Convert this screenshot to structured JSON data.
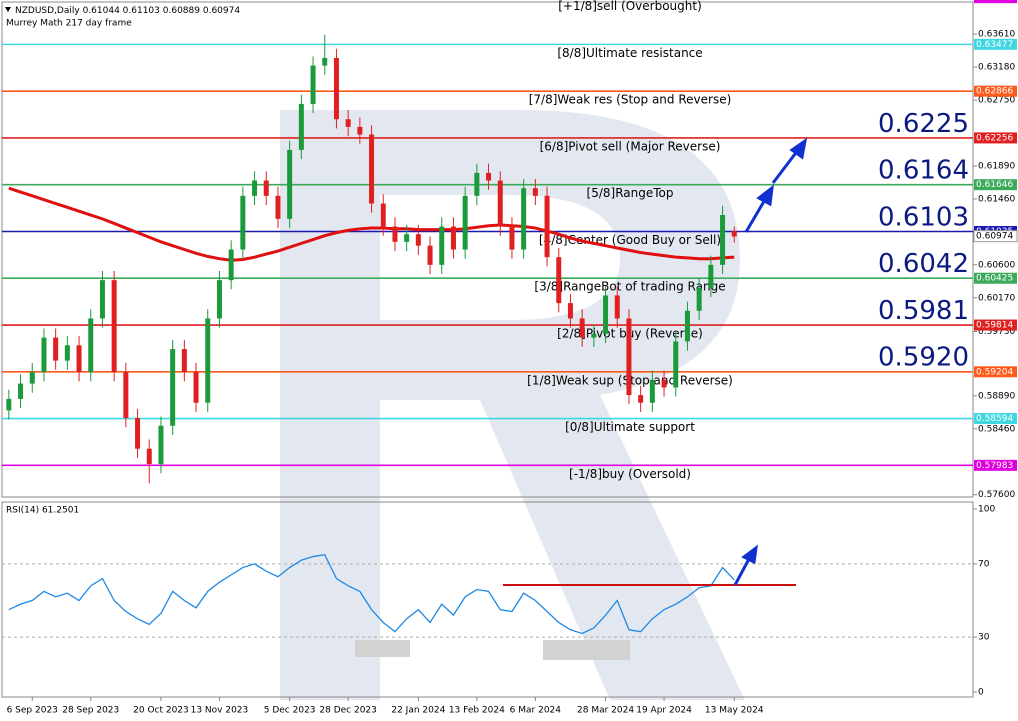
{
  "chart_data": [
    {
      "type": "candlestick",
      "title": "NZDUSD,Daily",
      "subtitle": "Murrey Math 217 day frame",
      "last_bar": [
        0.61044,
        0.61103,
        0.60889,
        0.60974
      ],
      "categories": [
        null,
        null,
        "6 Sep 2023",
        null,
        null,
        null,
        null,
        "28 Sep 2023",
        null,
        null,
        null,
        null,
        null,
        "20 Oct 2023",
        null,
        null,
        null,
        null,
        "13 Nov 2023",
        null,
        null,
        null,
        null,
        null,
        "5 Dec 2023",
        null,
        null,
        null,
        null,
        "28 Dec 2023",
        null,
        null,
        null,
        null,
        null,
        "22 Jan 2024",
        null,
        null,
        null,
        null,
        "13 Feb 2024",
        null,
        null,
        null,
        null,
        "6 Mar 2024",
        null,
        null,
        null,
        null,
        null,
        "28 Mar 2024",
        null,
        null,
        null,
        null,
        "19 Apr 2024",
        null,
        null,
        null,
        null,
        null,
        "13 May 2024"
      ],
      "open": [
        0.587,
        0.5885,
        0.5905,
        0.592,
        0.5965,
        0.5935,
        0.5955,
        0.592,
        0.599,
        0.604,
        0.592,
        0.586,
        0.582,
        0.58,
        0.585,
        0.595,
        0.592,
        0.588,
        0.599,
        0.604,
        0.608,
        0.615,
        0.617,
        0.615,
        0.612,
        0.621,
        0.627,
        0.632,
        0.633,
        0.625,
        0.624,
        0.623,
        0.614,
        0.611,
        0.609,
        0.61,
        0.6085,
        0.606,
        0.611,
        0.608,
        0.615,
        0.618,
        0.617,
        0.611,
        0.608,
        0.616,
        0.615,
        0.607,
        0.601,
        0.599,
        0.5965,
        0.597,
        0.602,
        0.599,
        0.589,
        0.588,
        0.591,
        0.59,
        0.596,
        0.6,
        0.603,
        0.606,
        0.6104
      ],
      "high": [
        0.5897,
        0.5917,
        0.5932,
        0.5977,
        0.5977,
        0.5967,
        0.5967,
        0.6002,
        0.6052,
        0.6052,
        0.5932,
        0.5872,
        0.5832,
        0.5862,
        0.5962,
        0.5962,
        0.5932,
        0.6002,
        0.6052,
        0.6092,
        0.6162,
        0.6182,
        0.6182,
        0.6162,
        0.6222,
        0.6282,
        0.6332,
        0.636,
        0.6342,
        0.6262,
        0.6252,
        0.6242,
        0.6152,
        0.6122,
        0.6112,
        0.6112,
        0.6097,
        0.6122,
        0.6122,
        0.6162,
        0.6192,
        0.6192,
        0.6182,
        0.6122,
        0.6172,
        0.6172,
        0.6162,
        0.6082,
        0.6022,
        0.6002,
        0.5982,
        0.6032,
        0.6032,
        0.6002,
        0.5902,
        0.5922,
        0.5922,
        0.5972,
        0.6012,
        0.6042,
        0.6072,
        0.6137,
        0.611
      ],
      "low": [
        0.5858,
        0.5873,
        0.5893,
        0.5908,
        0.5923,
        0.5923,
        0.5908,
        0.5908,
        0.5978,
        0.5908,
        0.5848,
        0.5808,
        0.5775,
        0.5788,
        0.5838,
        0.5908,
        0.5868,
        0.5868,
        0.5978,
        0.6028,
        0.6068,
        0.6138,
        0.6138,
        0.6108,
        0.6108,
        0.6198,
        0.6258,
        0.6308,
        0.6238,
        0.6228,
        0.6218,
        0.6128,
        0.6098,
        0.6078,
        0.6078,
        0.6073,
        0.6048,
        0.6048,
        0.6068,
        0.6068,
        0.6138,
        0.6158,
        0.6098,
        0.6068,
        0.6068,
        0.6138,
        0.6058,
        0.5998,
        0.5978,
        0.5953,
        0.5953,
        0.5958,
        0.5978,
        0.5878,
        0.5868,
        0.5868,
        0.5888,
        0.5888,
        0.5948,
        0.5988,
        0.6018,
        0.6048,
        0.6089
      ],
      "close": [
        0.5885,
        0.5905,
        0.592,
        0.5965,
        0.5935,
        0.5955,
        0.592,
        0.599,
        0.604,
        0.592,
        0.586,
        0.582,
        0.58,
        0.585,
        0.595,
        0.592,
        0.588,
        0.599,
        0.604,
        0.608,
        0.615,
        0.617,
        0.615,
        0.612,
        0.621,
        0.627,
        0.632,
        0.633,
        0.625,
        0.624,
        0.623,
        0.614,
        0.611,
        0.609,
        0.61,
        0.6085,
        0.606,
        0.611,
        0.608,
        0.615,
        0.618,
        0.617,
        0.611,
        0.608,
        0.616,
        0.615,
        0.607,
        0.601,
        0.599,
        0.5965,
        0.597,
        0.602,
        0.599,
        0.589,
        0.588,
        0.591,
        0.59,
        0.596,
        0.6,
        0.603,
        0.606,
        0.6125,
        0.6097
      ],
      "up_color": "#1a9a3a",
      "down_color": "#e02020",
      "ma": {
        "color": "#e01010",
        "values": [
          0.616,
          0.6155,
          0.615,
          0.6145,
          0.614,
          0.6135,
          0.613,
          0.6125,
          0.612,
          0.6114,
          0.6108,
          0.6102,
          0.6096,
          0.609,
          0.6085,
          0.608,
          0.6075,
          0.6071,
          0.6068,
          0.6066,
          0.6067,
          0.607,
          0.6074,
          0.6078,
          0.6083,
          0.6088,
          0.6093,
          0.6098,
          0.6102,
          0.6105,
          0.6107,
          0.6108,
          0.6108,
          0.6107,
          0.6107,
          0.6106,
          0.6106,
          0.6106,
          0.6106,
          0.6107,
          0.6109,
          0.6111,
          0.6112,
          0.6111,
          0.611,
          0.6108,
          0.6104,
          0.61,
          0.6095,
          0.6091,
          0.6088,
          0.6085,
          0.6082,
          0.6079,
          0.6076,
          0.6074,
          0.6072,
          0.607,
          0.6069,
          0.6068,
          0.6068,
          0.6069,
          0.607
        ]
      },
      "levels": [
        {
          "label": "[+1/8]sell (Overbought)",
          "value": 0.64087,
          "color": "#e000e0"
        },
        {
          "label": "[8/8]Ultimate resistance",
          "value": 0.63477,
          "color": "#40d8e0"
        },
        {
          "label": "[7/8]Weak res (Stop and Reverse)",
          "value": 0.62866,
          "color": "#ff5a1a"
        },
        {
          "label": "[6/8]Pivot sell (Major Reverse)",
          "value": 0.62256,
          "color": "#e02020"
        },
        {
          "label": "[5/8]RangeTop",
          "value": 0.61646,
          "color": "#3caa5a"
        },
        {
          "label": "[4/8]Center (Good Buy or Sell)",
          "value": 0.61035,
          "color": "#1a1ab0"
        },
        {
          "label": "[3/8]RangeBot of trading Range",
          "value": 0.60425,
          "color": "#3caa5a"
        },
        {
          "label": "[2/8]Pivot buy (Reverse)",
          "value": 0.59814,
          "color": "#e02020"
        },
        {
          "label": "[1/8]Weak sup (Stop and Reverse)",
          "value": 0.59204,
          "color": "#ff5a1a"
        },
        {
          "label": "[0/8]Ultimate support",
          "value": 0.58594,
          "color": "#40d8e0"
        },
        {
          "label": "[-1/8]buy (Oversold)",
          "value": 0.57983,
          "color": "#e000e0"
        }
      ],
      "targets": [
        "0.6225",
        "0.6164",
        "0.6103",
        "0.6042",
        "0.5981",
        "0.5920"
      ],
      "ylim": [
        0.5757,
        0.6403
      ],
      "yticks": [
        {
          "value": 0.6361,
          "label": "0.63610"
        },
        {
          "value": 0.6318,
          "label": "0.63180"
        },
        {
          "value": 0.6275,
          "label": "0.62750"
        },
        {
          "value": 0.6189,
          "label": "0.61890"
        },
        {
          "value": 0.6146,
          "label": "0.61460"
        },
        {
          "value": 0.606,
          "label": "0.60600"
        },
        {
          "value": 0.6017,
          "label": "0.60170"
        },
        {
          "value": 0.5973,
          "label": "0.59730"
        },
        {
          "value": 0.5889,
          "label": "0.58890"
        },
        {
          "value": 0.5846,
          "label": "0.58460"
        },
        {
          "value": 0.576,
          "label": "0.57600"
        }
      ]
    },
    {
      "type": "line",
      "title": "RSI(14) 61.2501",
      "color": "#1e88e5",
      "values": [
        45,
        48,
        50,
        55,
        52,
        54,
        50,
        58,
        62,
        50,
        44,
        40,
        37,
        43,
        55,
        50,
        46,
        55,
        60,
        64,
        68,
        70,
        66,
        63,
        68,
        72,
        74,
        75,
        62,
        58,
        55,
        45,
        38,
        33,
        40,
        45,
        38,
        48,
        42,
        52,
        56,
        55,
        45,
        44,
        54,
        50,
        44,
        38,
        34,
        32,
        35,
        42,
        50,
        34,
        33,
        40,
        45,
        48,
        52,
        57,
        58,
        68,
        61.25
      ],
      "ylim": [
        -2.7,
        103.8
      ],
      "yticks": [
        0,
        30,
        70,
        100
      ],
      "dotted_levels": [
        30,
        70
      ]
    }
  ]
}
